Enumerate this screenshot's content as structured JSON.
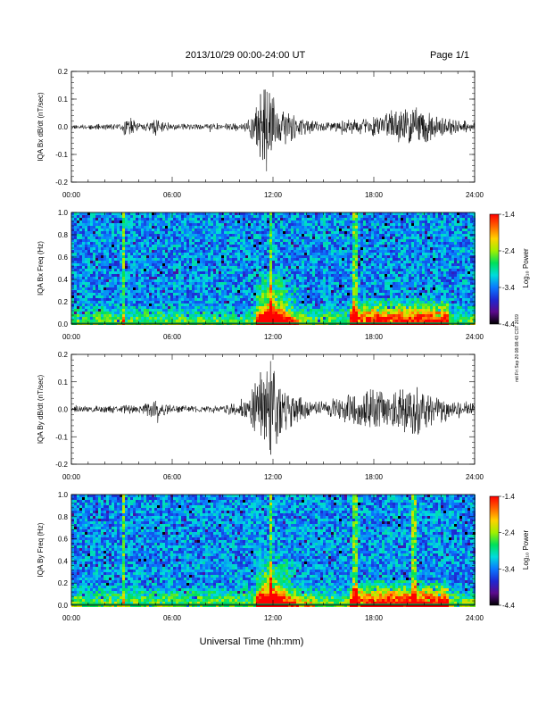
{
  "header": {
    "date_range": "2013/10/29  00:00-24:00 UT",
    "page": "Page 1/1"
  },
  "side_note": "mit Fri Sep 20 08:08:43 CST 2019",
  "xlabel": "Universal Time (hh:mm)",
  "colors": {
    "trace": "#000000",
    "colorbar": [
      "#000000",
      "#5b0a8c",
      "#1e28d2",
      "#0a78ff",
      "#00dcdc",
      "#00e05a",
      "#a0f000",
      "#ffd200",
      "#ff6400",
      "#ff0000"
    ]
  },
  "chart_data": [
    {
      "type": "line",
      "ylabel": "IQA Bx dB/dt (nT/sec)",
      "xlim": [
        0,
        24
      ],
      "ylim": [
        -0.2,
        0.2
      ],
      "x_ticks": [
        "00:00",
        "06:00",
        "12:00",
        "18:00",
        "24:00"
      ],
      "y_ticks": [
        "0.2",
        "0.1",
        "0.0",
        "-0.1",
        "-0.2"
      ],
      "envelope": {
        "x": [
          0,
          2,
          3,
          3.2,
          4,
          4.7,
          5,
          6,
          9,
          10.5,
          10.9,
          11.4,
          11.8,
          12.2,
          13,
          14,
          15,
          16,
          16.4,
          17,
          17.5,
          18.5,
          19.5,
          20.5,
          21.5,
          22.5,
          24
        ],
        "amplitude": [
          0.01,
          0.012,
          0.012,
          0.05,
          0.012,
          0.02,
          0.04,
          0.012,
          0.012,
          0.02,
          0.08,
          0.16,
          0.2,
          0.1,
          0.06,
          0.03,
          0.02,
          0.02,
          0.03,
          0.03,
          0.035,
          0.05,
          0.07,
          0.08,
          0.05,
          0.03,
          0.02
        ]
      },
      "seed": 11
    },
    {
      "type": "heatmap",
      "ylabel": "IQA Bx Freq (Hz)",
      "xlim": [
        0,
        24
      ],
      "ylim": [
        0,
        1.0
      ],
      "x_ticks": [
        "00:00",
        "06:00",
        "12:00",
        "18:00",
        "24:00"
      ],
      "y_ticks": [
        "1.0",
        "0.8",
        "0.6",
        "0.4",
        "0.2",
        "0.0"
      ],
      "colorbar": {
        "label": "Log₁₀ Power",
        "ticks": [
          "-1.4",
          "-2.4",
          "-3.4",
          "-4.4"
        ],
        "range": [
          -4.4,
          -1.4
        ]
      },
      "vertical_lines_hours": [
        3.1,
        11.9,
        16.9
      ],
      "enhanced_hours": [
        11.0,
        14.0
      ],
      "low_freq_band_hours": [
        16.5,
        22.5
      ],
      "seed": 23
    },
    {
      "type": "line",
      "ylabel": "IQA By dB/dt (nT/sec)",
      "xlim": [
        0,
        24
      ],
      "ylim": [
        -0.2,
        0.2
      ],
      "x_ticks": [
        "00:00",
        "06:00",
        "12:00",
        "18:00",
        "24:00"
      ],
      "y_ticks": [
        "0.2",
        "0.1",
        "0.0",
        "-0.1",
        "-0.2"
      ],
      "envelope": {
        "x": [
          0,
          2,
          3,
          3.2,
          4,
          4.7,
          5,
          6,
          9,
          10.5,
          10.9,
          11.4,
          11.8,
          12.2,
          13,
          14,
          15,
          16,
          16.4,
          17,
          17.5,
          18.5,
          19.5,
          20.5,
          21.5,
          22.5,
          24
        ],
        "amplitude": [
          0.012,
          0.015,
          0.015,
          0.025,
          0.015,
          0.03,
          0.04,
          0.015,
          0.015,
          0.04,
          0.12,
          0.18,
          0.2,
          0.15,
          0.08,
          0.04,
          0.03,
          0.05,
          0.06,
          0.07,
          0.08,
          0.09,
          0.09,
          0.11,
          0.07,
          0.04,
          0.025
        ]
      },
      "seed": 37
    },
    {
      "type": "heatmap",
      "ylabel": "IQA By Freq (Hz)",
      "xlim": [
        0,
        24
      ],
      "ylim": [
        0,
        1.0
      ],
      "x_ticks": [
        "00:00",
        "06:00",
        "12:00",
        "18:00",
        "24:00"
      ],
      "y_ticks": [
        "1.0",
        "0.8",
        "0.6",
        "0.4",
        "0.2",
        "0.0"
      ],
      "colorbar": {
        "label": "Log₁₀ Power",
        "ticks": [
          "-1.4",
          "-2.4",
          "-3.4",
          "-4.4"
        ],
        "range": [
          -4.4,
          -1.4
        ]
      },
      "vertical_lines_hours": [
        3.1,
        11.9,
        16.9,
        20.4
      ],
      "enhanced_hours": [
        11.0,
        14.5
      ],
      "low_freq_band_hours": [
        16.5,
        22.5
      ],
      "seed": 59
    }
  ]
}
